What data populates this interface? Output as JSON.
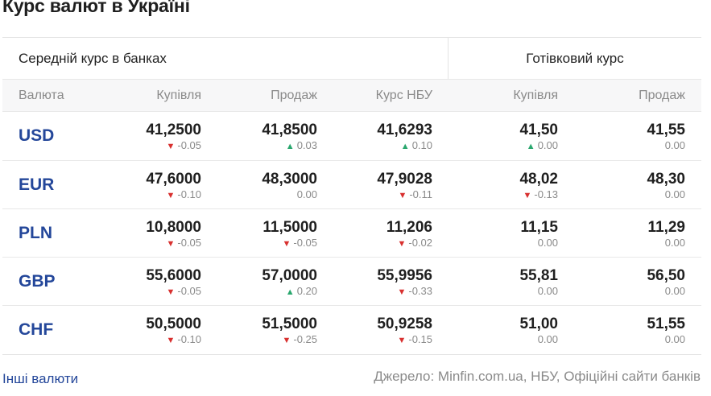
{
  "title": "Курс валют в Україні",
  "groups": {
    "bank_avg": "Середній курс в банках",
    "cash": "Готівковий курс"
  },
  "headers": [
    "Валюта",
    "Купівля",
    "Продаж",
    "Курс НБУ",
    "Купівля",
    "Продаж"
  ],
  "colors": {
    "accent": "#24479a",
    "down": "#d8302f",
    "up": "#2aa76e",
    "muted": "#8a8a8a"
  },
  "rows": [
    {
      "currency": "USD",
      "cells": [
        {
          "value": "41,2500",
          "change": "-0.05",
          "dir": "down"
        },
        {
          "value": "41,8500",
          "change": "0.03",
          "dir": "up"
        },
        {
          "value": "41,6293",
          "change": "0.10",
          "dir": "up"
        },
        {
          "value": "41,50",
          "change": "0.00",
          "dir": "up"
        },
        {
          "value": "41,55",
          "change": "0.00",
          "dir": "none"
        }
      ]
    },
    {
      "currency": "EUR",
      "cells": [
        {
          "value": "47,6000",
          "change": "-0.10",
          "dir": "down"
        },
        {
          "value": "48,3000",
          "change": "0.00",
          "dir": "none"
        },
        {
          "value": "47,9028",
          "change": "-0.11",
          "dir": "down"
        },
        {
          "value": "48,02",
          "change": "-0.13",
          "dir": "down"
        },
        {
          "value": "48,30",
          "change": "0.00",
          "dir": "none"
        }
      ]
    },
    {
      "currency": "PLN",
      "cells": [
        {
          "value": "10,8000",
          "change": "-0.05",
          "dir": "down"
        },
        {
          "value": "11,5000",
          "change": "-0.05",
          "dir": "down"
        },
        {
          "value": "11,206",
          "change": "-0.02",
          "dir": "down"
        },
        {
          "value": "11,15",
          "change": "0.00",
          "dir": "none"
        },
        {
          "value": "11,29",
          "change": "0.00",
          "dir": "none"
        }
      ]
    },
    {
      "currency": "GBP",
      "cells": [
        {
          "value": "55,6000",
          "change": "-0.05",
          "dir": "down"
        },
        {
          "value": "57,0000",
          "change": "0.20",
          "dir": "up"
        },
        {
          "value": "55,9956",
          "change": "-0.33",
          "dir": "down"
        },
        {
          "value": "55,81",
          "change": "0.00",
          "dir": "none"
        },
        {
          "value": "56,50",
          "change": "0.00",
          "dir": "none"
        }
      ]
    },
    {
      "currency": "CHF",
      "cells": [
        {
          "value": "50,5000",
          "change": "-0.10",
          "dir": "down"
        },
        {
          "value": "51,5000",
          "change": "-0.25",
          "dir": "down"
        },
        {
          "value": "50,9258",
          "change": "-0.15",
          "dir": "down"
        },
        {
          "value": "51,00",
          "change": "0.00",
          "dir": "none"
        },
        {
          "value": "51,55",
          "change": "0.00",
          "dir": "none"
        }
      ]
    }
  ],
  "footer": {
    "link": "Інші валюти",
    "source": "Джерело: Minfin.com.ua, НБУ, Офіційні сайти банків"
  }
}
